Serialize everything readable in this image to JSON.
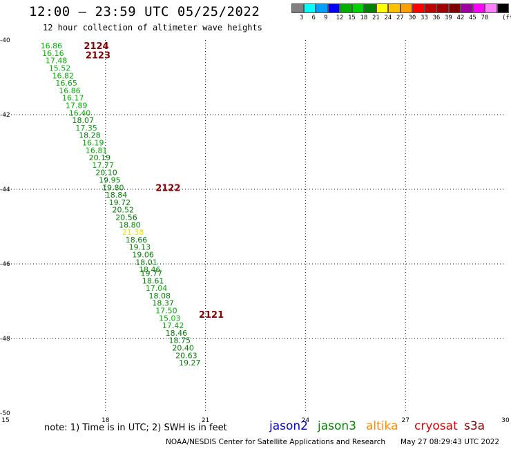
{
  "header": {
    "title": "12:00 – 23:59 UTC 05/25/2022",
    "subtitle": "12 hour collection of altimeter wave heights"
  },
  "color_scale": {
    "colors": [
      "#808080",
      "#00ffff",
      "#00a0ff",
      "#0000ff",
      "#00b000",
      "#00d000",
      "#008000",
      "#ffff00",
      "#ffc000",
      "#ffa000",
      "#ff0000",
      "#c00000",
      "#a00000",
      "#800000",
      "#a000a0",
      "#ff00ff",
      "#ff80ff",
      "#000000"
    ],
    "labels": [
      "3",
      "6",
      "9",
      "12",
      "15",
      "18",
      "21",
      "24",
      "27",
      "30",
      "33",
      "36",
      "39",
      "42",
      "45",
      "70"
    ],
    "unit": "(ft)"
  },
  "axes": {
    "x_ticks": [
      "15",
      "18",
      "21",
      "24",
      "27",
      "30"
    ],
    "y_ticks": [
      "-40",
      "-42",
      "-44",
      "-46",
      "-48",
      "-50"
    ],
    "x_range": [
      15,
      30
    ],
    "y_range": [
      -50,
      -40
    ]
  },
  "chart_data": {
    "type": "scatter",
    "passes": [
      {
        "label": "2124",
        "lon": 17.35,
        "lat": -40.15
      },
      {
        "label": "2123",
        "lon": 17.4,
        "lat": -40.4
      },
      {
        "label": "2122",
        "lon": 19.5,
        "lat": -43.95
      },
      {
        "label": "2121",
        "lon": 20.8,
        "lat": -47.35
      }
    ],
    "points": [
      {
        "lon": 16.05,
        "lat": -40.15,
        "swh": "16.86"
      },
      {
        "lon": 16.1,
        "lat": -40.35,
        "swh": "16.16"
      },
      {
        "lon": 16.2,
        "lat": -40.55,
        "swh": "17.48"
      },
      {
        "lon": 16.3,
        "lat": -40.75,
        "swh": "15.52"
      },
      {
        "lon": 16.4,
        "lat": -40.95,
        "swh": "16.82"
      },
      {
        "lon": 16.5,
        "lat": -41.15,
        "swh": "16.65"
      },
      {
        "lon": 16.6,
        "lat": -41.35,
        "swh": "16.86"
      },
      {
        "lon": 16.7,
        "lat": -41.55,
        "swh": "16.17"
      },
      {
        "lon": 16.8,
        "lat": -41.75,
        "swh": "17.89"
      },
      {
        "lon": 16.9,
        "lat": -41.95,
        "swh": "16.40"
      },
      {
        "lon": 17.0,
        "lat": -42.15,
        "swh": "18.07"
      },
      {
        "lon": 17.1,
        "lat": -42.35,
        "swh": "17.35"
      },
      {
        "lon": 17.2,
        "lat": -42.55,
        "swh": "18.28"
      },
      {
        "lon": 17.3,
        "lat": -42.75,
        "swh": "16.19"
      },
      {
        "lon": 17.4,
        "lat": -42.95,
        "swh": "16.81"
      },
      {
        "lon": 17.5,
        "lat": -43.15,
        "swh": "20.19"
      },
      {
        "lon": 17.6,
        "lat": -43.35,
        "swh": "17.77"
      },
      {
        "lon": 17.7,
        "lat": -43.55,
        "swh": "20.10"
      },
      {
        "lon": 17.8,
        "lat": -43.75,
        "swh": "19.95"
      },
      {
        "lon": 17.9,
        "lat": -43.95,
        "swh": "19.80"
      },
      {
        "lon": 18.0,
        "lat": -44.15,
        "swh": "18.84"
      },
      {
        "lon": 18.1,
        "lat": -44.35,
        "swh": "19.72"
      },
      {
        "lon": 18.2,
        "lat": -44.55,
        "swh": "20.52"
      },
      {
        "lon": 18.3,
        "lat": -44.75,
        "swh": "20.56"
      },
      {
        "lon": 18.4,
        "lat": -44.95,
        "swh": "18.80"
      },
      {
        "lon": 18.5,
        "lat": -45.15,
        "swh": "21.38"
      },
      {
        "lon": 18.6,
        "lat": -45.35,
        "swh": "18.66"
      },
      {
        "lon": 18.7,
        "lat": -45.55,
        "swh": "19.13"
      },
      {
        "lon": 18.8,
        "lat": -45.75,
        "swh": "19.06"
      },
      {
        "lon": 18.9,
        "lat": -45.95,
        "swh": "18.01"
      },
      {
        "lon": 19.0,
        "lat": -46.15,
        "swh": "18.46"
      },
      {
        "lon": 19.05,
        "lat": -46.25,
        "swh": "19.77"
      },
      {
        "lon": 19.1,
        "lat": -46.45,
        "swh": "18.61"
      },
      {
        "lon": 19.2,
        "lat": -46.65,
        "swh": "17.04"
      },
      {
        "lon": 19.3,
        "lat": -46.85,
        "swh": "18.08"
      },
      {
        "lon": 19.4,
        "lat": -47.05,
        "swh": "18.37"
      },
      {
        "lon": 19.5,
        "lat": -47.25,
        "swh": "17.50"
      },
      {
        "lon": 19.6,
        "lat": -47.45,
        "swh": "15.03"
      },
      {
        "lon": 19.7,
        "lat": -47.65,
        "swh": "17.42"
      },
      {
        "lon": 19.8,
        "lat": -47.85,
        "swh": "18.46"
      },
      {
        "lon": 19.9,
        "lat": -48.05,
        "swh": "18.75"
      },
      {
        "lon": 20.0,
        "lat": -48.25,
        "swh": "20.40"
      },
      {
        "lon": 20.1,
        "lat": -48.45,
        "swh": "20.63"
      },
      {
        "lon": 20.2,
        "lat": -48.65,
        "swh": "19.27"
      }
    ]
  },
  "footer": {
    "note": "note:  1) Time is in UTC;  2) SWH is in feet",
    "satellites": [
      {
        "name": "jason2",
        "color": "#0000cc"
      },
      {
        "name": "jason3",
        "color": "#008800"
      },
      {
        "name": "altika",
        "color": "#ff8c00"
      },
      {
        "name": "cryosat",
        "color": "#e00000"
      },
      {
        "name": "s3a",
        "color": "#8b0000"
      }
    ],
    "credit": "NOAA/NESDIS Center for Satellite Applications and Research",
    "timestamp": "May 27 08:29:43 UTC 2022"
  }
}
